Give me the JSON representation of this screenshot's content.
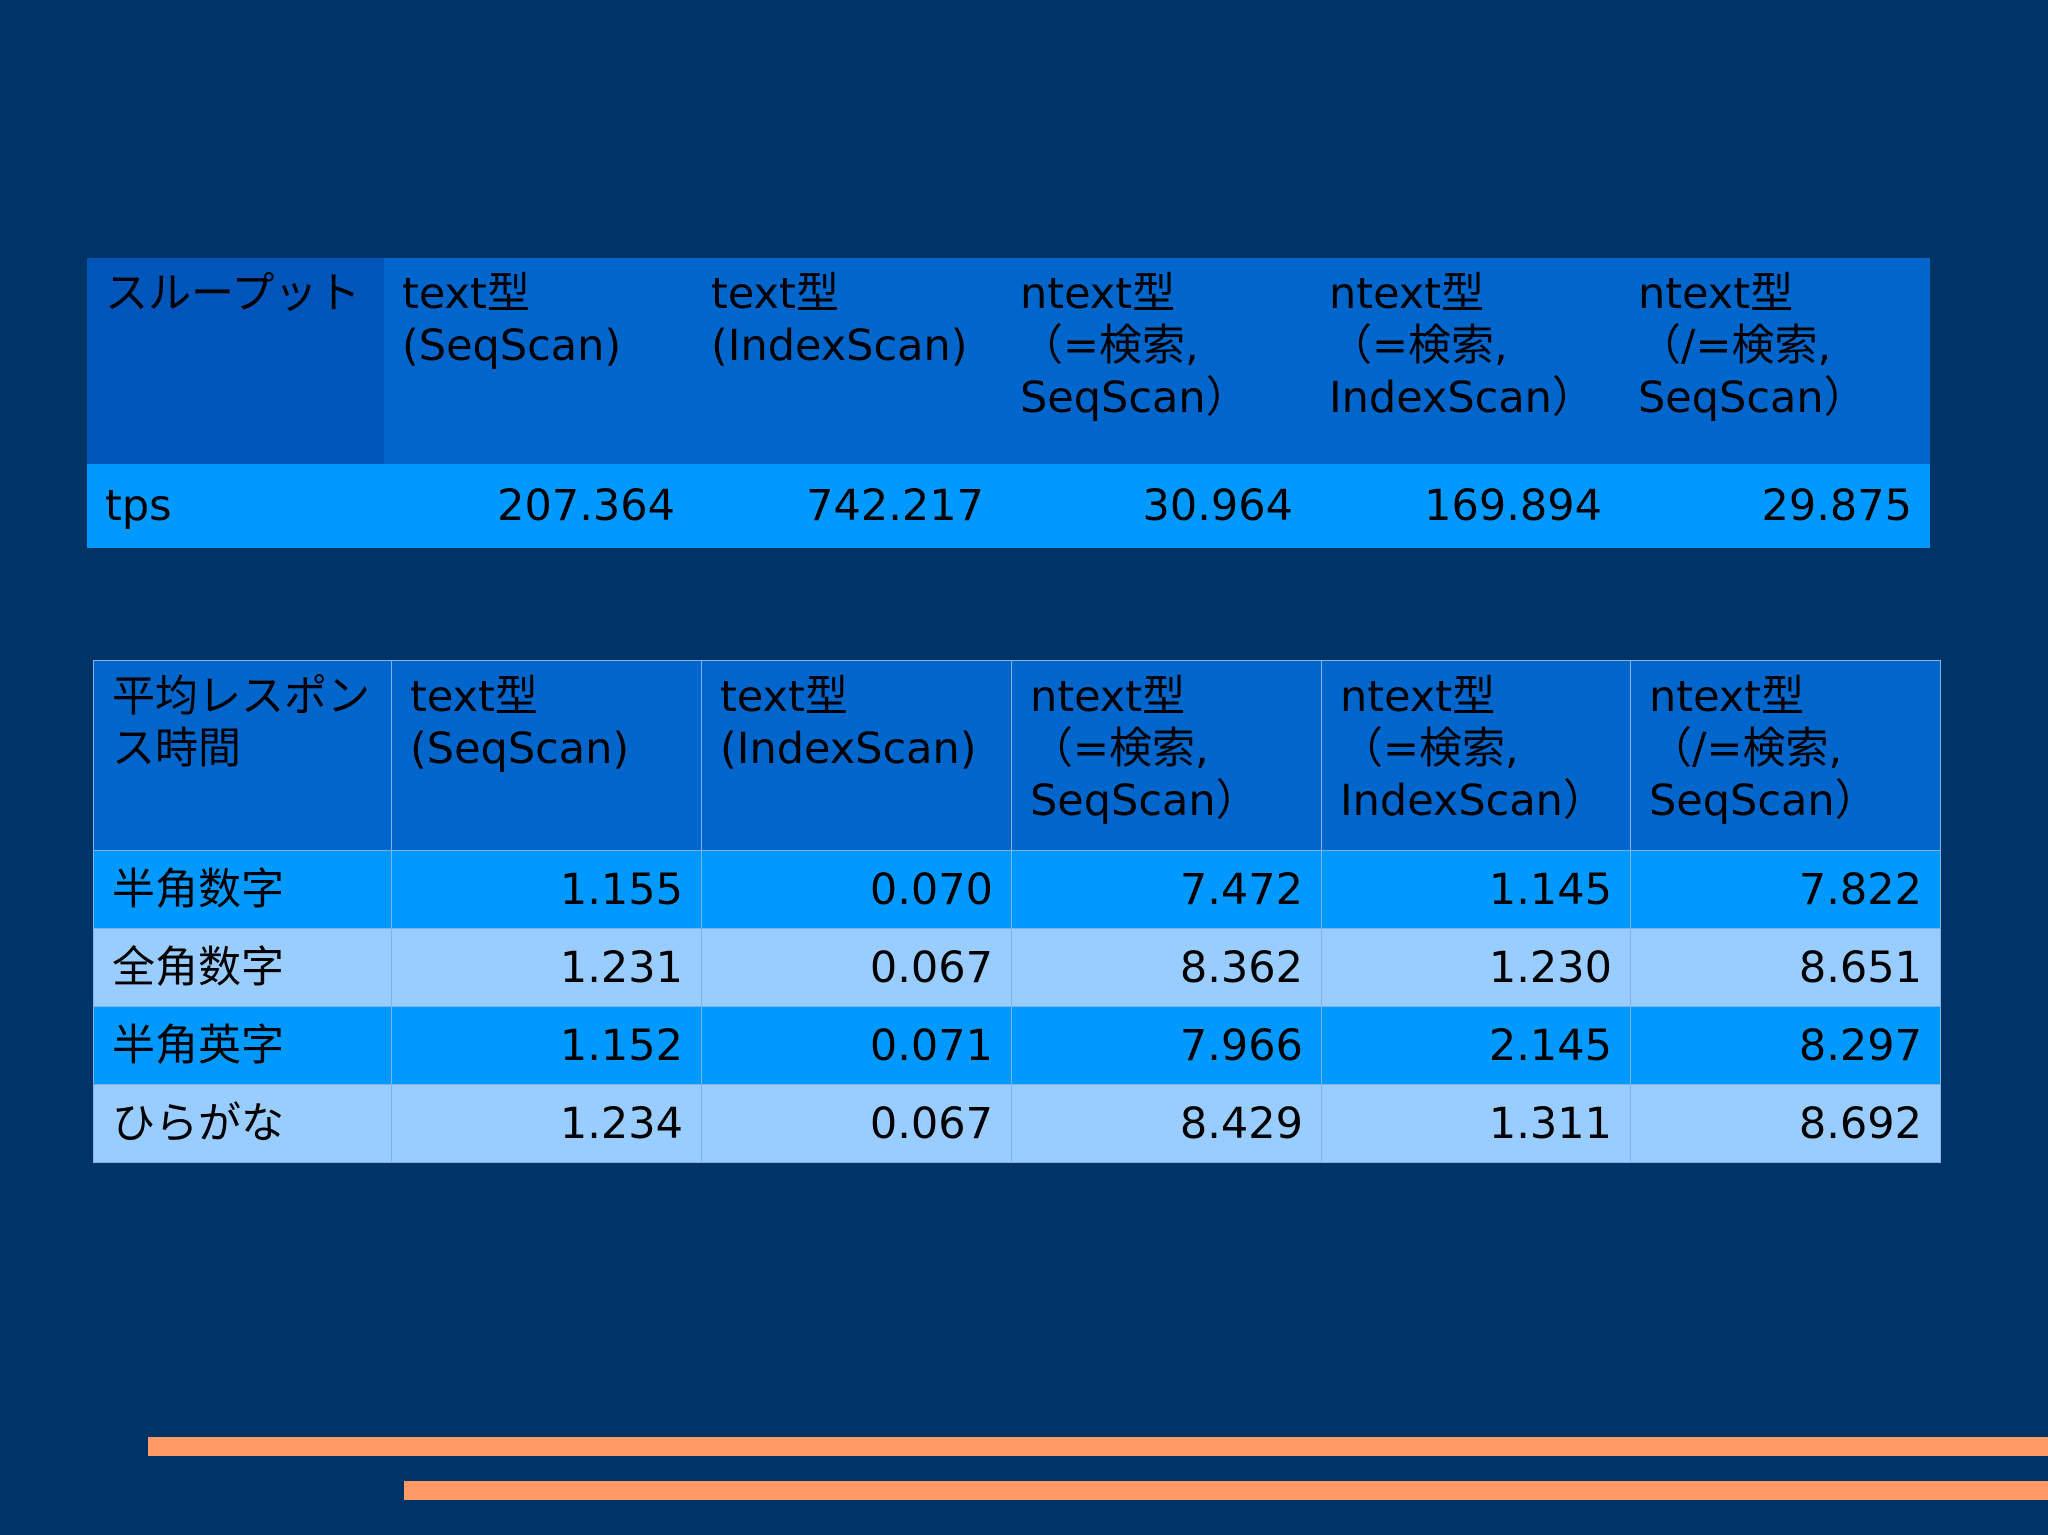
{
  "throughput_table": {
    "headers": [
      [
        "スループット"
      ],
      [
        "text型",
        "(SeqScan)"
      ],
      [
        "text型",
        "(IndexScan)"
      ],
      [
        "ntext型",
        "（=検索,",
        "SeqScan）"
      ],
      [
        "ntext型",
        "（=検索,",
        "IndexScan）"
      ],
      [
        "ntext型",
        "（/=検索,",
        "SeqScan）"
      ]
    ],
    "rows": [
      {
        "label": "tps",
        "values": [
          "207.364",
          "742.217",
          "30.964",
          "169.894",
          "29.875"
        ]
      }
    ]
  },
  "response_table": {
    "headers": [
      [
        "平均レスポン",
        "ス時間"
      ],
      [
        "text型",
        "(SeqScan)"
      ],
      [
        "text型",
        "(IndexScan)"
      ],
      [
        "ntext型",
        "（=検索,",
        "SeqScan）"
      ],
      [
        "ntext型",
        "（=検索,",
        "IndexScan）"
      ],
      [
        "ntext型",
        "（/=検索,",
        "SeqScan）"
      ]
    ],
    "rows": [
      {
        "label": "半角数字",
        "values": [
          "1.155",
          "0.070",
          "7.472",
          "1.145",
          "7.822"
        ]
      },
      {
        "label": "全角数字",
        "values": [
          "1.231",
          "0.067",
          "8.362",
          "1.230",
          "8.651"
        ]
      },
      {
        "label": "半角英字",
        "values": [
          "1.152",
          "0.071",
          "7.966",
          "2.145",
          "8.297"
        ]
      },
      {
        "label": "ひらがな",
        "values": [
          "1.234",
          "0.067",
          "8.429",
          "1.311",
          "8.692"
        ]
      }
    ]
  },
  "colors": {
    "background": "#003366",
    "header_cell": "#0066cc",
    "row_dark": "#0099ff",
    "row_light": "#99ccff",
    "stripe": "#ff9966"
  }
}
